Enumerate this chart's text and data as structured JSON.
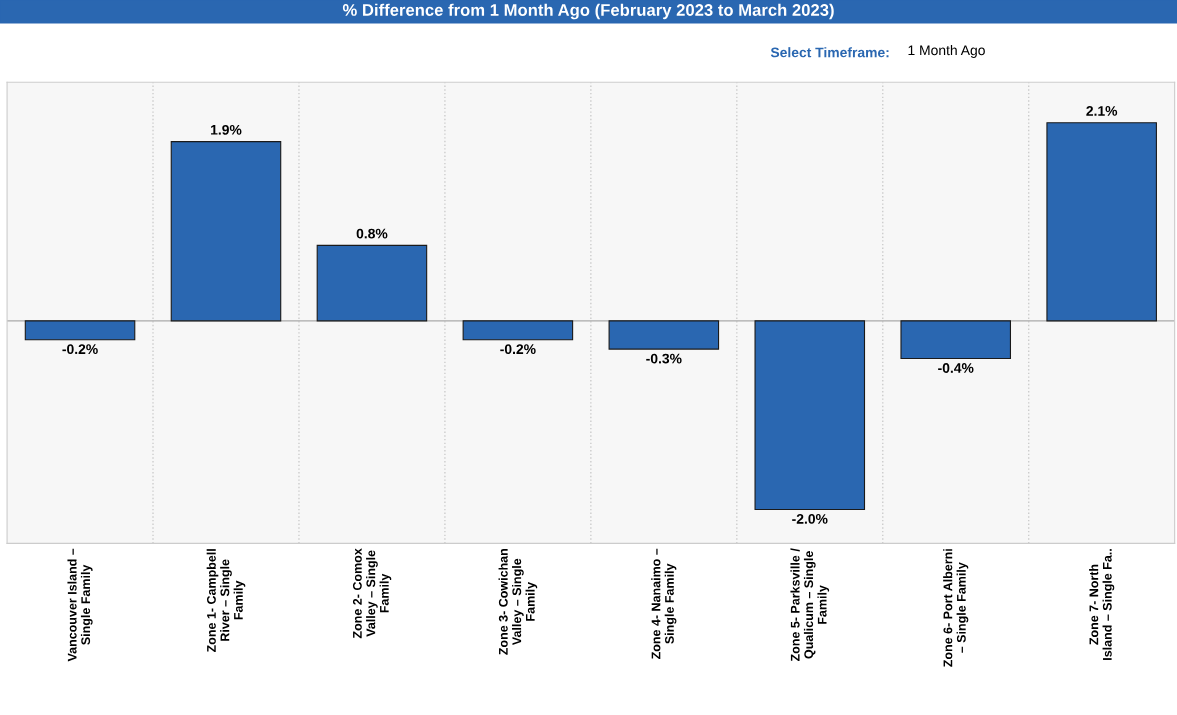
{
  "chart_data": {
    "type": "bar",
    "title": "% Difference from 1 Month Ago (February 2023 to March 2023)",
    "annotations": [
      "Select Timeframe:",
      "1 Month Ago"
    ],
    "categories": [
      "Vancouver Island –\nSingle Family",
      "Zone 1- Campbell\nRiver – Single\nFamily",
      "Zone 2- Comox\nValley – Single\nFamily",
      "Zone 3- Cowichan\nValley – Single\nFamily",
      "Zone 4- Nanaimo –\nSingle Family",
      "Zone 5- Parksville /\nQualicum – Single\nFamily",
      "Zone 6- Port Alberni\n– Single Family",
      "Zone 7- North\nIsland – Single Fa.."
    ],
    "values": [
      -0.2,
      1.9,
      0.8,
      -0.2,
      -0.3,
      -2.0,
      -0.4,
      2.1
    ],
    "value_labels": [
      "-0.2%",
      "1.9%",
      "0.8%",
      "-0.2%",
      "-0.3%",
      "-2.0%",
      "-0.4%",
      "2.1%"
    ],
    "color": "#2a67b1",
    "ylim": [
      -2.36,
      2.53
    ],
    "tick_labels": "x",
    "grid": "x"
  }
}
